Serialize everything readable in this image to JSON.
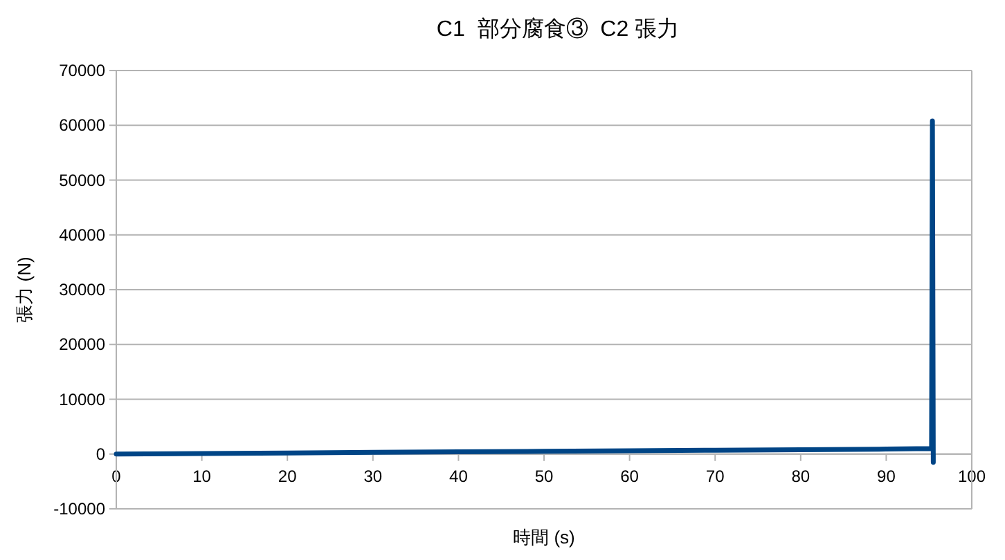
{
  "chart_data": {
    "type": "line",
    "title": "C1  部分腐食③  C2 張力",
    "xlabel": "時間 (s)",
    "ylabel": "張力 (N)",
    "x": [
      0,
      10,
      20,
      30,
      40,
      50,
      60,
      70,
      80,
      90,
      95.3,
      95.4,
      95.5,
      95.5
    ],
    "series": [
      {
        "color": "#004586",
        "values": [
          0,
          100,
          200,
          300,
          400,
          500,
          600,
          700,
          800,
          900,
          1000,
          60800,
          -1500,
          0
        ]
      }
    ],
    "xlim": [
      0,
      100
    ],
    "xticks": [
      0,
      10,
      20,
      30,
      40,
      50,
      60,
      70,
      80,
      90,
      100
    ],
    "ylim": [
      -10000,
      70000
    ],
    "yticks": [
      -10000,
      0,
      10000,
      20000,
      30000,
      40000,
      50000,
      60000,
      70000
    ],
    "grid": "y",
    "marker": "none",
    "line_style": "solid"
  }
}
